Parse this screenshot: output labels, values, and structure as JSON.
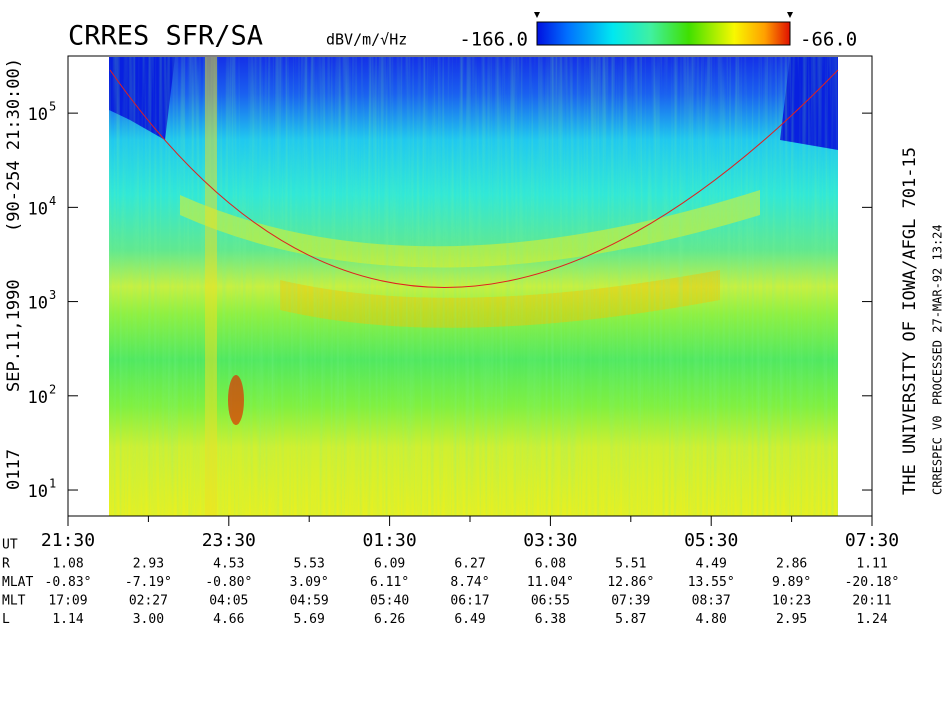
{
  "chart_data": {
    "type": "spectrogram",
    "title": "CRRES SFR/SA",
    "colorbar_unit": "dBV/m/√Hz",
    "clim": [
      -166,
      -66
    ],
    "cticks": [
      {
        "value": -166,
        "label": "-166.0"
      },
      {
        "value": -66,
        "label": "-66.0"
      }
    ],
    "ylim": [
      5.3,
      404000
    ],
    "log_y": true,
    "yticks": [
      {
        "value": 10,
        "label": "10",
        "exponent": "1"
      },
      {
        "value": 100,
        "label": "10",
        "exponent": "2"
      },
      {
        "value": 1000,
        "label": "10",
        "exponent": "3"
      },
      {
        "value": 10000,
        "label": "10",
        "exponent": "4"
      },
      {
        "value": 100000,
        "label": "10",
        "exponent": "5"
      }
    ],
    "xlim": [
      21.5,
      31.5
    ],
    "xticks": [
      {
        "value": 21.5,
        "label": "21:30"
      },
      {
        "value": 23.5,
        "label": "23:30"
      },
      {
        "value": 25.5,
        "label": "01:30"
      },
      {
        "value": 27.5,
        "label": "03:30"
      },
      {
        "value": 29.5,
        "label": "05:30"
      },
      {
        "value": 31.5,
        "label": "07:30"
      }
    ],
    "xminor": [
      22.5,
      24.5,
      26.5,
      28.5,
      30.5
    ],
    "left_text": [
      "0117",
      "SEP.11,1990",
      "(90-254 21:30:00)"
    ],
    "right_text": "THE UNIVERSITY OF IOWA/AFGL 701-15",
    "right_small_text": [
      "CRRESPEC V0",
      "PROCESSED 27-MAR-92  13:24"
    ],
    "ephemeris": {
      "x_label": "UT",
      "rows": [
        {
          "name": "R",
          "values": [
            "1.08",
            "2.93",
            "4.53",
            "5.53",
            "6.09",
            "6.27",
            "6.08",
            "5.51",
            "4.49",
            "2.86",
            "1.11"
          ]
        },
        {
          "name": "MLAT",
          "values": [
            "-0.83°",
            "-7.19°",
            "-0.80°",
            "3.09°",
            "6.11°",
            "8.74°",
            "11.04°",
            "12.86°",
            "13.55°",
            "9.89°",
            "-20.18°"
          ]
        },
        {
          "name": "MLT",
          "values": [
            "17:09",
            "02:27",
            "04:05",
            "04:59",
            "05:40",
            "06:17",
            "06:55",
            "07:39",
            "08:37",
            "10:23",
            "20:11"
          ]
        },
        {
          "name": "L",
          "values": [
            "1.14",
            "3.00",
            "4.66",
            "5.69",
            "6.26",
            "6.49",
            "6.38",
            "5.87",
            "4.80",
            "2.95",
            "1.24"
          ]
        }
      ]
    }
  }
}
